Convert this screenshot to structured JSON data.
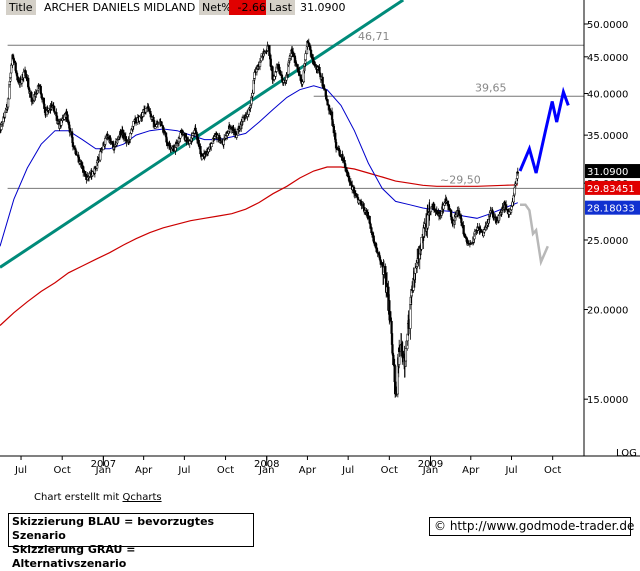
{
  "header": {
    "title_label": "Title",
    "title_value": "ARCHER DANIELS MIDLAND CO",
    "net_label": "Net%",
    "net_value": "-2.66",
    "last_label": "Last",
    "last_value": "31.0900"
  },
  "footer": {
    "credit_prefix": "Chart erstellt mit",
    "credit_link": "Qcharts",
    "legend_blue": "Skizzierung BLAU = bevorzugtes Szenario",
    "legend_gray": "Skizzierung GRAU = Alternativszenario",
    "copyright_symbol": "©",
    "url": "http://www.godmode-trader.de"
  },
  "colors": {
    "candles": "#000000",
    "ma_short": "#0000cc",
    "ma_long": "#cc0000",
    "trendline": "#008b7a",
    "reference_lines": "#777777",
    "scenario_blue": "#0000ff",
    "scenario_gray": "#b8b8b8",
    "last_price_badge": "#000000",
    "ma_long_badge": "#e00000",
    "ma_short_badge": "#1030d0"
  },
  "chart_data": {
    "type": "candlestick",
    "scale": "log",
    "scale_label": "LOG",
    "ylim": [
      12.5,
      54
    ],
    "xlim": [
      "2006-05-15",
      "2009-12-10"
    ],
    "y_ticks": [
      15,
      20,
      25,
      30,
      35,
      40,
      45,
      50
    ],
    "y_tick_labels": [
      "15.0000",
      "20.0000",
      "25.0000",
      "30.0000",
      "35.0000",
      "40.0000",
      "45.0000",
      "50.0000"
    ],
    "x_ticks": [
      {
        "date": "2006-07-01",
        "label": "Jul"
      },
      {
        "date": "2006-10-01",
        "label": "Oct"
      },
      {
        "date": "2007-01-01",
        "label": "Jan"
      },
      {
        "date": "2007-04-01",
        "label": "Apr"
      },
      {
        "date": "2007-07-01",
        "label": "Jul"
      },
      {
        "date": "2007-10-01",
        "label": "Oct"
      },
      {
        "date": "2008-01-01",
        "label": "Jan"
      },
      {
        "date": "2008-04-01",
        "label": "Apr"
      },
      {
        "date": "2008-07-01",
        "label": "Jul"
      },
      {
        "date": "2008-10-01",
        "label": "Oct"
      },
      {
        "date": "2009-01-01",
        "label": "Jan"
      },
      {
        "date": "2009-04-01",
        "label": "Apr"
      },
      {
        "date": "2009-07-01",
        "label": "Jul"
      },
      {
        "date": "2009-10-01",
        "label": "Oct"
      }
    ],
    "year_labels": [
      {
        "date": "2007-01-01",
        "label": "2007"
      },
      {
        "date": "2008-01-01",
        "label": "2008"
      },
      {
        "date": "2009-01-01",
        "label": "2009"
      }
    ],
    "reference_lines": [
      {
        "value": 46.71,
        "label": "46,71",
        "from": "2006-06-01"
      },
      {
        "value": 39.65,
        "label": "39,65",
        "from": "2008-04-15"
      },
      {
        "value": 29.5,
        "label": "~29,50",
        "from": "2006-06-01"
      }
    ],
    "price_badges": [
      {
        "value": 31.09,
        "label": "31.0900",
        "role": "last_price"
      },
      {
        "value": 29.83451,
        "label": "29.83451",
        "role": "ma_long"
      },
      {
        "value": 28.18033,
        "label": "28.18033",
        "role": "ma_short"
      }
    ],
    "trendline": {
      "start": [
        "2006-05-15",
        22.9
      ],
      "end": [
        "2008-11-01",
        54.0
      ]
    },
    "price_path": [
      [
        "2006-05-15",
        35.5
      ],
      [
        "2006-06-01",
        38.5
      ],
      [
        "2006-06-12",
        45.5
      ],
      [
        "2006-06-25",
        41.0
      ],
      [
        "2006-07-10",
        43.0
      ],
      [
        "2006-07-25",
        39.0
      ],
      [
        "2006-08-10",
        41.0
      ],
      [
        "2006-08-25",
        37.5
      ],
      [
        "2006-09-10",
        38.5
      ],
      [
        "2006-09-25",
        36.0
      ],
      [
        "2006-10-10",
        37.5
      ],
      [
        "2006-10-25",
        34.0
      ],
      [
        "2006-11-10",
        32.0
      ],
      [
        "2006-11-25",
        30.5
      ],
      [
        "2006-12-10",
        31.0
      ],
      [
        "2006-12-25",
        33.0
      ],
      [
        "2007-01-10",
        35.0
      ],
      [
        "2007-01-25",
        33.5
      ],
      [
        "2007-02-10",
        35.5
      ],
      [
        "2007-02-25",
        34.0
      ],
      [
        "2007-03-10",
        36.5
      ],
      [
        "2007-03-25",
        37.0
      ],
      [
        "2007-04-10",
        38.5
      ],
      [
        "2007-04-25",
        36.0
      ],
      [
        "2007-05-10",
        36.5
      ],
      [
        "2007-05-25",
        34.0
      ],
      [
        "2007-06-10",
        33.5
      ],
      [
        "2007-06-25",
        35.5
      ],
      [
        "2007-07-10",
        34.0
      ],
      [
        "2007-07-25",
        35.5
      ],
      [
        "2007-08-10",
        32.5
      ],
      [
        "2007-08-25",
        33.5
      ],
      [
        "2007-09-10",
        35.0
      ],
      [
        "2007-09-25",
        34.0
      ],
      [
        "2007-10-10",
        36.0
      ],
      [
        "2007-10-25",
        35.0
      ],
      [
        "2007-11-10",
        37.0
      ],
      [
        "2007-11-25",
        38.0
      ],
      [
        "2007-12-05",
        42.5
      ],
      [
        "2007-12-20",
        45.0
      ],
      [
        "2008-01-05",
        46.5
      ],
      [
        "2008-01-15",
        41.5
      ],
      [
        "2008-01-25",
        44.0
      ],
      [
        "2008-02-10",
        41.0
      ],
      [
        "2008-02-25",
        46.0
      ],
      [
        "2008-03-10",
        43.5
      ],
      [
        "2008-03-20",
        41.0
      ],
      [
        "2008-04-01",
        47.5
      ],
      [
        "2008-04-15",
        44.0
      ],
      [
        "2008-04-28",
        43.0
      ],
      [
        "2008-05-10",
        40.0
      ],
      [
        "2008-05-25",
        37.0
      ],
      [
        "2008-06-05",
        33.5
      ],
      [
        "2008-06-20",
        32.5
      ],
      [
        "2008-07-05",
        30.0
      ],
      [
        "2008-07-20",
        28.5
      ],
      [
        "2008-08-01",
        28.0
      ],
      [
        "2008-08-15",
        27.0
      ],
      [
        "2008-08-30",
        24.5
      ],
      [
        "2008-09-10",
        23.5
      ],
      [
        "2008-09-20",
        22.5
      ],
      [
        "2008-10-01",
        20.0
      ],
      [
        "2008-10-08",
        17.5
      ],
      [
        "2008-10-15",
        15.0
      ],
      [
        "2008-10-25",
        18.0
      ],
      [
        "2008-11-05",
        17.0
      ],
      [
        "2008-11-20",
        21.0
      ],
      [
        "2008-12-05",
        24.0
      ],
      [
        "2008-12-20",
        26.0
      ],
      [
        "2009-01-05",
        28.0
      ],
      [
        "2009-01-20",
        27.0
      ],
      [
        "2009-02-05",
        28.5
      ],
      [
        "2009-02-20",
        26.5
      ],
      [
        "2009-03-05",
        27.5
      ],
      [
        "2009-03-20",
        25.0
      ],
      [
        "2009-04-01",
        24.5
      ],
      [
        "2009-04-15",
        26.0
      ],
      [
        "2009-04-30",
        25.5
      ],
      [
        "2009-05-15",
        27.5
      ],
      [
        "2009-05-30",
        26.5
      ],
      [
        "2009-06-15",
        28.0
      ],
      [
        "2009-06-28",
        27.0
      ],
      [
        "2009-07-05",
        28.5
      ],
      [
        "2009-07-10",
        30.0
      ],
      [
        "2009-07-15",
        31.09
      ]
    ],
    "ma_short_path": [
      [
        "2006-05-15",
        24.5
      ],
      [
        "2006-06-15",
        28.5
      ],
      [
        "2006-07-15",
        31.5
      ],
      [
        "2006-08-15",
        34.0
      ],
      [
        "2006-09-15",
        35.5
      ],
      [
        "2006-10-15",
        35.5
      ],
      [
        "2006-11-15",
        34.5
      ],
      [
        "2006-12-15",
        33.5
      ],
      [
        "2007-01-15",
        33.5
      ],
      [
        "2007-02-15",
        34.0
      ],
      [
        "2007-03-15",
        35.0
      ],
      [
        "2007-04-15",
        35.5
      ],
      [
        "2007-05-15",
        35.7
      ],
      [
        "2007-06-15",
        35.5
      ],
      [
        "2007-07-15",
        35.0
      ],
      [
        "2007-08-15",
        34.5
      ],
      [
        "2007-09-15",
        34.5
      ],
      [
        "2007-10-15",
        34.8
      ],
      [
        "2007-11-15",
        35.2
      ],
      [
        "2007-12-15",
        36.5
      ],
      [
        "2008-01-15",
        38.0
      ],
      [
        "2008-02-15",
        39.5
      ],
      [
        "2008-03-15",
        40.5
      ],
      [
        "2008-04-15",
        41.0
      ],
      [
        "2008-05-15",
        40.5
      ],
      [
        "2008-06-15",
        38.5
      ],
      [
        "2008-07-15",
        35.5
      ],
      [
        "2008-08-15",
        32.0
      ],
      [
        "2008-09-15",
        29.5
      ],
      [
        "2008-10-15",
        28.3
      ],
      [
        "2008-11-15",
        28.0
      ],
      [
        "2008-12-15",
        27.7
      ],
      [
        "2009-01-15",
        27.5
      ],
      [
        "2009-02-15",
        27.4
      ],
      [
        "2009-03-15",
        27.0
      ],
      [
        "2009-04-15",
        26.8
      ],
      [
        "2009-05-15",
        27.2
      ],
      [
        "2009-06-15",
        27.7
      ],
      [
        "2009-07-15",
        28.18
      ]
    ],
    "ma_long_path": [
      [
        "2006-05-15",
        19.0
      ],
      [
        "2006-06-15",
        19.8
      ],
      [
        "2006-07-15",
        20.5
      ],
      [
        "2006-08-15",
        21.2
      ],
      [
        "2006-09-15",
        21.8
      ],
      [
        "2006-10-15",
        22.5
      ],
      [
        "2006-11-15",
        23.0
      ],
      [
        "2006-12-15",
        23.5
      ],
      [
        "2007-01-15",
        24.0
      ],
      [
        "2007-02-15",
        24.6
      ],
      [
        "2007-03-15",
        25.1
      ],
      [
        "2007-04-15",
        25.6
      ],
      [
        "2007-05-15",
        26.0
      ],
      [
        "2007-06-15",
        26.3
      ],
      [
        "2007-07-15",
        26.6
      ],
      [
        "2007-08-15",
        26.8
      ],
      [
        "2007-09-15",
        27.0
      ],
      [
        "2007-10-15",
        27.2
      ],
      [
        "2007-11-15",
        27.6
      ],
      [
        "2007-12-15",
        28.2
      ],
      [
        "2008-01-15",
        29.0
      ],
      [
        "2008-02-15",
        29.7
      ],
      [
        "2008-03-15",
        30.5
      ],
      [
        "2008-04-15",
        31.2
      ],
      [
        "2008-05-15",
        31.6
      ],
      [
        "2008-06-15",
        31.6
      ],
      [
        "2008-07-15",
        31.4
      ],
      [
        "2008-08-15",
        31.0
      ],
      [
        "2008-09-15",
        30.6
      ],
      [
        "2008-10-15",
        30.2
      ],
      [
        "2008-11-15",
        30.0
      ],
      [
        "2008-12-15",
        29.8
      ],
      [
        "2009-01-15",
        29.7
      ],
      [
        "2009-02-15",
        29.7
      ],
      [
        "2009-03-15",
        29.7
      ],
      [
        "2009-04-15",
        29.7
      ],
      [
        "2009-05-15",
        29.75
      ],
      [
        "2009-06-15",
        29.8
      ],
      [
        "2009-07-15",
        29.83
      ]
    ],
    "scenario_blue_path": [
      [
        "2009-07-20",
        31.2
      ],
      [
        "2009-08-10",
        33.5
      ],
      [
        "2009-08-25",
        31.0
      ],
      [
        "2009-09-15",
        35.5
      ],
      [
        "2009-09-30",
        39.0
      ],
      [
        "2009-10-10",
        36.5
      ],
      [
        "2009-10-25",
        40.2
      ],
      [
        "2009-11-05",
        38.5
      ]
    ],
    "scenario_gray_path": [
      [
        "2009-07-20",
        28.0
      ],
      [
        "2009-08-01",
        28.0
      ],
      [
        "2009-08-10",
        27.5
      ],
      [
        "2009-08-18",
        25.5
      ],
      [
        "2009-08-25",
        25.8
      ],
      [
        "2009-09-05",
        23.3
      ],
      [
        "2009-09-20",
        24.5
      ]
    ]
  }
}
